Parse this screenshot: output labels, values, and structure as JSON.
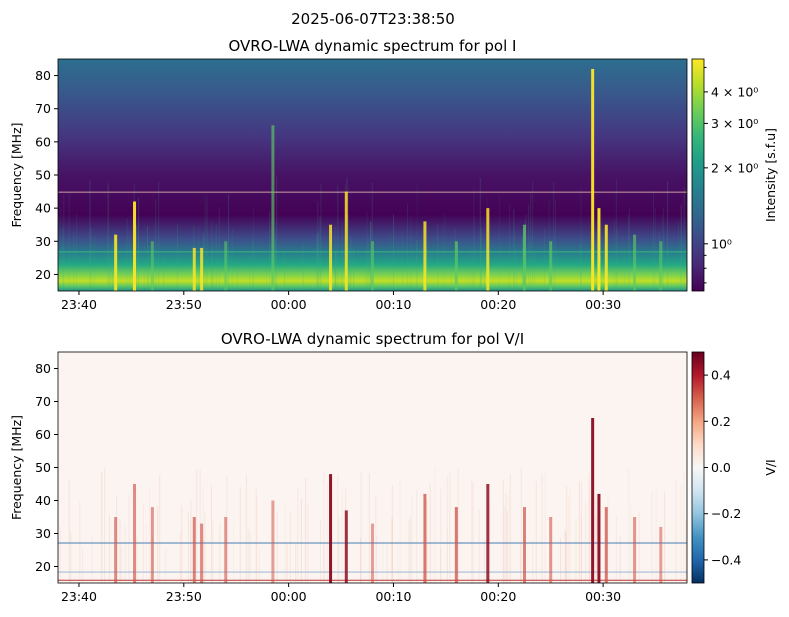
{
  "suptitle": "2025-06-07T23:38:50",
  "chart_data": [
    {
      "type": "heatmap",
      "title": "OVRO-LWA dynamic spectrum for pol I",
      "xlabel": "",
      "ylabel": "Frequency [MHz]",
      "xlim_minutes_after_2338": [
        0,
        60
      ],
      "ylim": [
        15,
        85
      ],
      "xticks": [
        {
          "t": 2,
          "label": "23:40"
        },
        {
          "t": 12,
          "label": "23:50"
        },
        {
          "t": 22,
          "label": "00:00"
        },
        {
          "t": 32,
          "label": "00:10"
        },
        {
          "t": 42,
          "label": "00:20"
        },
        {
          "t": 52,
          "label": "00:30"
        }
      ],
      "yticks": [
        20,
        30,
        40,
        50,
        60,
        70,
        80
      ],
      "colormap": "viridis",
      "colorbar": {
        "label": "Intensity [s.f.u]",
        "scale": "log",
        "range": [
          0.65,
          5.4
        ],
        "ticks": [
          {
            "v": 4,
            "label": "4 × 10⁰"
          },
          {
            "v": 3,
            "label": "3 × 10⁰"
          },
          {
            "v": 2,
            "label": "2 × 10⁰"
          },
          {
            "v": 1,
            "label": "10⁰"
          }
        ]
      },
      "background_profile": [
        {
          "f": 85,
          "c": "#2d6f8e"
        },
        {
          "f": 75,
          "c": "#38598c"
        },
        {
          "f": 62,
          "c": "#453781"
        },
        {
          "f": 50,
          "c": "#471365"
        },
        {
          "f": 38,
          "c": "#440256"
        },
        {
          "f": 31,
          "c": "#3e4a89"
        },
        {
          "f": 27,
          "c": "#2a788e"
        },
        {
          "f": 23,
          "c": "#22a884"
        },
        {
          "f": 20,
          "c": "#7ad151"
        },
        {
          "f": 18,
          "c": "#c2df23"
        },
        {
          "f": 16.5,
          "c": "#5ec962"
        },
        {
          "f": 15,
          "c": "#21918c"
        }
      ],
      "bursts": [
        {
          "t": 5.5,
          "ftop": 32,
          "s": 0.9
        },
        {
          "t": 7.3,
          "ftop": 42,
          "s": 1.0
        },
        {
          "t": 9,
          "ftop": 30,
          "s": 0.4
        },
        {
          "t": 13,
          "ftop": 28,
          "s": 0.8
        },
        {
          "t": 13.7,
          "ftop": 28,
          "s": 0.8
        },
        {
          "t": 16,
          "ftop": 30,
          "s": 0.4
        },
        {
          "t": 20.5,
          "ftop": 65,
          "s": 0.5
        },
        {
          "t": 26,
          "ftop": 35,
          "s": 0.8
        },
        {
          "t": 27.5,
          "ftop": 45,
          "s": 0.8
        },
        {
          "t": 30,
          "ftop": 30,
          "s": 0.4
        },
        {
          "t": 35,
          "ftop": 36,
          "s": 0.8
        },
        {
          "t": 38,
          "ftop": 30,
          "s": 0.6
        },
        {
          "t": 41,
          "ftop": 40,
          "s": 0.8
        },
        {
          "t": 44.5,
          "ftop": 35,
          "s": 0.7
        },
        {
          "t": 47,
          "ftop": 30,
          "s": 0.5
        },
        {
          "t": 51,
          "ftop": 82,
          "s": 1.0
        },
        {
          "t": 51.6,
          "ftop": 40,
          "s": 1.0
        },
        {
          "t": 52.3,
          "ftop": 35,
          "s": 0.9
        },
        {
          "t": 55,
          "ftop": 32,
          "s": 0.5
        },
        {
          "t": 57.5,
          "ftop": 30,
          "s": 0.4
        }
      ],
      "horizontal_lines": [
        {
          "f": 45,
          "c": "#c8a0a0"
        },
        {
          "f": 27,
          "c": "#35b779"
        }
      ]
    },
    {
      "type": "heatmap",
      "title": "OVRO-LWA dynamic spectrum for pol V/I",
      "xlabel": "",
      "ylabel": "Frequency [MHz]",
      "xlim_minutes_after_2338": [
        0,
        60
      ],
      "ylim": [
        15,
        85
      ],
      "xticks": [
        {
          "t": 2,
          "label": "23:40"
        },
        {
          "t": 12,
          "label": "23:50"
        },
        {
          "t": 22,
          "label": "00:00"
        },
        {
          "t": 32,
          "label": "00:10"
        },
        {
          "t": 42,
          "label": "00:20"
        },
        {
          "t": 52,
          "label": "00:30"
        }
      ],
      "yticks": [
        20,
        30,
        40,
        50,
        60,
        70,
        80
      ],
      "colormap": "RdBu_r",
      "colorbar": {
        "label": "V/I",
        "scale": "linear",
        "range": [
          -0.5,
          0.5
        ],
        "ticks": [
          {
            "v": 0.4,
            "label": "0.4"
          },
          {
            "v": 0.2,
            "label": "0.2"
          },
          {
            "v": 0,
            "label": "0.0"
          },
          {
            "v": -0.2,
            "label": "−0.2"
          },
          {
            "v": -0.4,
            "label": "−0.4"
          }
        ]
      },
      "bursts": [
        {
          "t": 5.5,
          "ftop": 35,
          "s": 0.5
        },
        {
          "t": 7.3,
          "ftop": 45,
          "s": 0.5
        },
        {
          "t": 9,
          "ftop": 38,
          "s": 0.4
        },
        {
          "t": 13,
          "ftop": 35,
          "s": 0.6
        },
        {
          "t": 13.7,
          "ftop": 33,
          "s": 0.5
        },
        {
          "t": 16,
          "ftop": 35,
          "s": 0.4
        },
        {
          "t": 20.5,
          "ftop": 40,
          "s": 0.3
        },
        {
          "t": 26,
          "ftop": 48,
          "s": 1.0
        },
        {
          "t": 27.5,
          "ftop": 37,
          "s": 0.8
        },
        {
          "t": 30,
          "ftop": 33,
          "s": 0.3
        },
        {
          "t": 35,
          "ftop": 42,
          "s": 0.7
        },
        {
          "t": 38,
          "ftop": 38,
          "s": 0.7
        },
        {
          "t": 41,
          "ftop": 45,
          "s": 0.8
        },
        {
          "t": 44.5,
          "ftop": 38,
          "s": 0.6
        },
        {
          "t": 47,
          "ftop": 35,
          "s": 0.4
        },
        {
          "t": 51,
          "ftop": 65,
          "s": 1.0
        },
        {
          "t": 51.6,
          "ftop": 42,
          "s": 1.0
        },
        {
          "t": 52.3,
          "ftop": 38,
          "s": 0.7
        },
        {
          "t": 55,
          "ftop": 35,
          "s": 0.4
        },
        {
          "t": 57.5,
          "ftop": 32,
          "s": 0.3
        }
      ],
      "horizontal_lines": [
        {
          "f": 27.3,
          "c": "#4a7fb5"
        },
        {
          "f": 16,
          "c": "#c0393b"
        },
        {
          "f": 18.5,
          "c": "#9cb9d6"
        }
      ]
    }
  ]
}
